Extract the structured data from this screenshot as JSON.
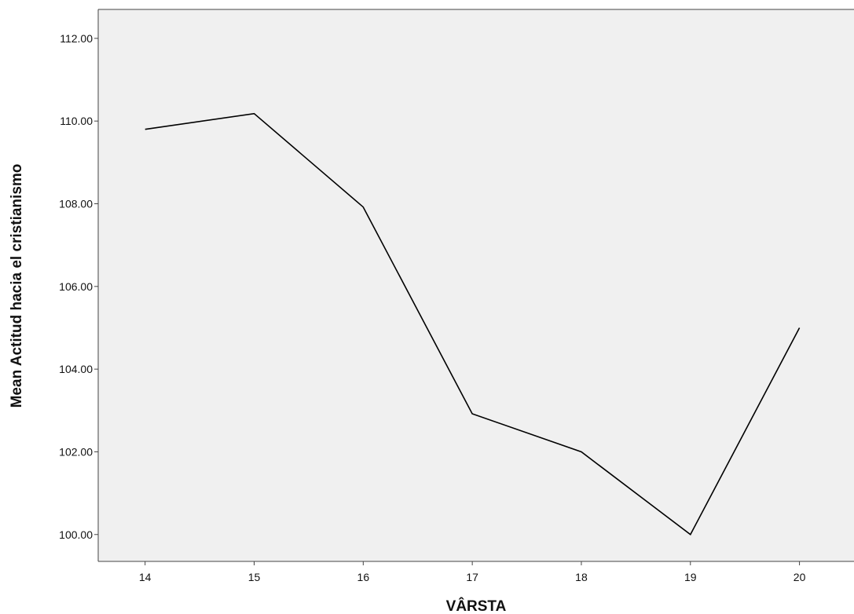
{
  "chart_data": {
    "type": "line",
    "xlabel": "VÂRSTA",
    "ylabel": "Mean Actitud hacia el cristianismo",
    "x": [
      14,
      15,
      16,
      17,
      18,
      19,
      20
    ],
    "x_tick_labels": [
      "14",
      "15",
      "16",
      "17",
      "18",
      "19",
      "20"
    ],
    "xlim": [
      13.57,
      20.5
    ],
    "ylim": [
      99.35,
      112.7
    ],
    "y_ticks": [
      100,
      102,
      104,
      106,
      108,
      110,
      112
    ],
    "y_tick_labels": [
      "100.00",
      "102.00",
      "104.00",
      "106.00",
      "108.00",
      "110.00",
      "112.00"
    ],
    "series": [
      {
        "values": [
          109.8,
          110.18,
          107.92,
          102.92,
          102.0,
          100.0,
          105.0
        ]
      }
    ],
    "grid": false,
    "plot_background": "#f0f0f0",
    "line_color": "#000000"
  }
}
